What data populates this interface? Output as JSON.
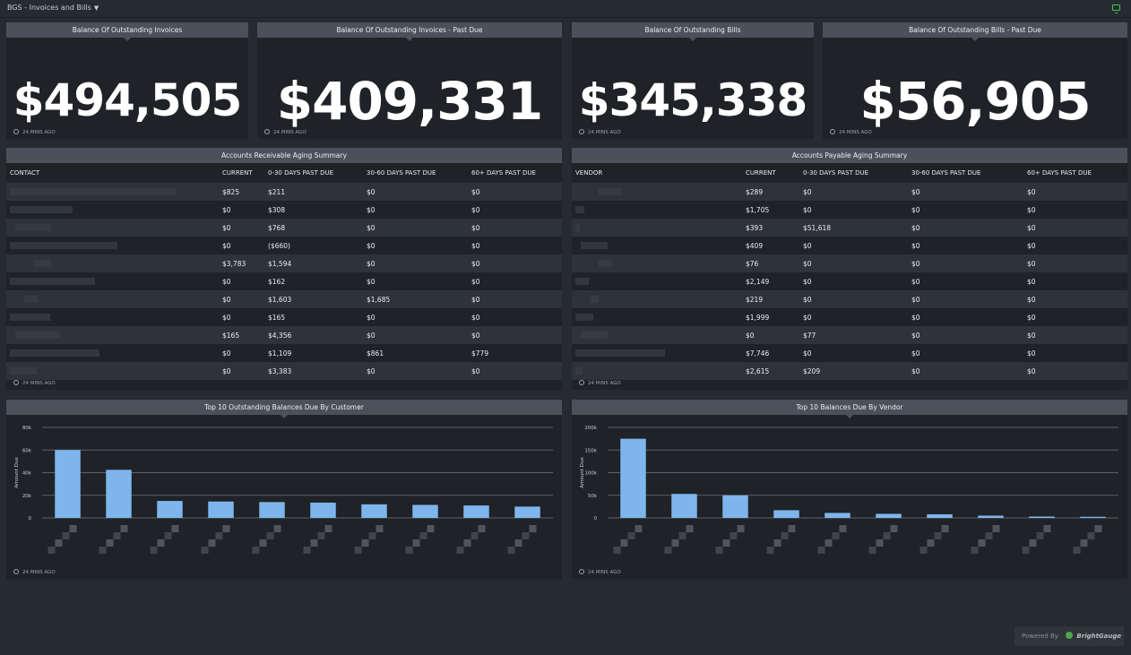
{
  "header": {
    "title": "BGS - Invoices and Bills"
  },
  "footer_text": "24 MINS AGO",
  "kpis": [
    {
      "title": "Balance Of Outstanding Invoices",
      "value": "$494,505"
    },
    {
      "title": "Balance Of Outstanding Invoices - Past Due",
      "value": "$409,331"
    },
    {
      "title": "Balance Of Outstanding Bills",
      "value": "$345,338"
    },
    {
      "title": "Balance Of Outstanding Bills - Past Due",
      "value": "$56,905"
    }
  ],
  "ar": {
    "title": "Accounts Receivable Aging Summary",
    "columns": [
      "CONTACT",
      "CURRENT",
      "0-30 DAYS PAST DUE",
      "30-60 DAYS PAST DUE",
      "60+ DAYS PAST DUE"
    ],
    "rows": [
      [
        "$825",
        "$211",
        "$0",
        "$0"
      ],
      [
        "$0",
        "$308",
        "$0",
        "$0"
      ],
      [
        "$0",
        "$768",
        "$0",
        "$0"
      ],
      [
        "$0",
        "($660)",
        "$0",
        "$0"
      ],
      [
        "$3,783",
        "$1,594",
        "$0",
        "$0"
      ],
      [
        "$0",
        "$162",
        "$0",
        "$0"
      ],
      [
        "$0",
        "$1,603",
        "$1,685",
        "$0"
      ],
      [
        "$0",
        "$165",
        "$0",
        "$0"
      ],
      [
        "$165",
        "$4,356",
        "$0",
        "$0"
      ],
      [
        "$0",
        "$1,109",
        "$861",
        "$779"
      ],
      [
        "$0",
        "$3,383",
        "$0",
        "$0"
      ]
    ]
  },
  "ap": {
    "title": "Accounts Payable Aging Summary",
    "columns": [
      "VENDOR",
      "CURRENT",
      "0-30 DAYS PAST DUE",
      "30-60 DAYS PAST DUE",
      "60+ DAYS PAST DUE"
    ],
    "rows": [
      [
        "$289",
        "$0",
        "$0",
        "$0"
      ],
      [
        "$1,705",
        "$0",
        "$0",
        "$0"
      ],
      [
        "$393",
        "$51,618",
        "$0",
        "$0"
      ],
      [
        "$409",
        "$0",
        "$0",
        "$0"
      ],
      [
        "$76",
        "$0",
        "$0",
        "$0"
      ],
      [
        "$2,149",
        "$0",
        "$0",
        "$0"
      ],
      [
        "$219",
        "$0",
        "$0",
        "$0"
      ],
      [
        "$1,999",
        "$0",
        "$0",
        "$0"
      ],
      [
        "$0",
        "$77",
        "$0",
        "$0"
      ],
      [
        "$7,746",
        "$0",
        "$0",
        "$0"
      ],
      [
        "$2,615",
        "$209",
        "$0",
        "$0"
      ]
    ]
  },
  "chart_data": [
    {
      "type": "bar",
      "title": "Top 10 Outstanding Balances Due By Customer",
      "ylabel": "Amount Due",
      "ylim": [
        0,
        80000
      ],
      "yticks": [
        0,
        20000,
        40000,
        60000,
        80000
      ],
      "ytick_labels": [
        "0",
        "20k",
        "40k",
        "60k",
        "80k"
      ],
      "values": [
        60000,
        42500,
        15000,
        14500,
        14000,
        13500,
        12000,
        11500,
        11000,
        10000
      ],
      "bar_color": "#7eb5ec",
      "grid": true
    },
    {
      "type": "bar",
      "title": "Top 10 Balances Due By Vendor",
      "ylabel": "Amount Due",
      "ylim": [
        0,
        200000
      ],
      "yticks": [
        0,
        50000,
        100000,
        150000,
        200000
      ],
      "ytick_labels": [
        "0",
        "50k",
        "100k",
        "150k",
        "200k"
      ],
      "values": [
        175000,
        53000,
        50000,
        17000,
        11000,
        9000,
        8000,
        5000,
        3000,
        2500
      ],
      "bar_color": "#7eb5ec",
      "grid": true
    }
  ],
  "branding": {
    "powered_by": "Powered By",
    "brand": "BrightGauge"
  }
}
